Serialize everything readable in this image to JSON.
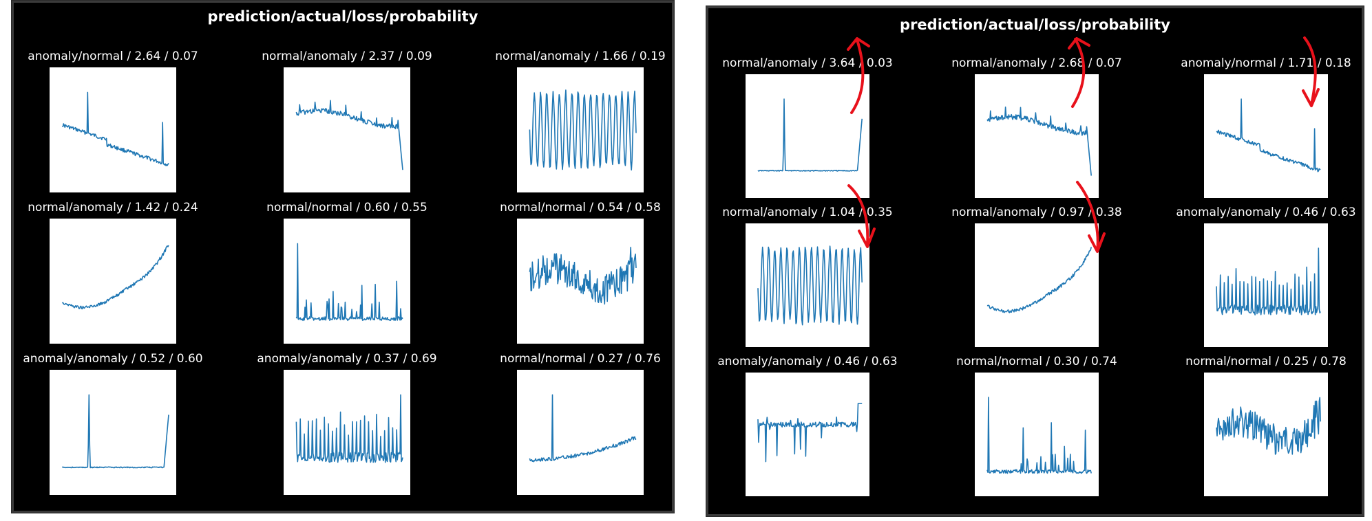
{
  "chart_data": [
    {
      "type": "line",
      "title": "prediction/actual/loss/probability",
      "subplots": [
        {
          "label": "anomaly/normal / 2.64 / 0.07",
          "pattern": "drift_spikes"
        },
        {
          "label": "normal/anomaly / 2.37 / 0.09",
          "pattern": "plateau_drop"
        },
        {
          "label": "normal/anomaly / 1.66 / 0.19",
          "pattern": "periodic"
        },
        {
          "label": "normal/anomaly / 1.42 / 0.24",
          "pattern": "rising"
        },
        {
          "label": "normal/normal / 0.60 / 0.55",
          "pattern": "sparse_spikes"
        },
        {
          "label": "normal/normal / 0.54 / 0.58",
          "pattern": "noisy_wave"
        },
        {
          "label": "anomaly/anomaly / 0.52 / 0.60",
          "pattern": "single_spike"
        },
        {
          "label": "anomaly/anomaly / 0.37 / 0.69",
          "pattern": "dense_spikes"
        },
        {
          "label": "normal/normal / 0.27 / 0.76",
          "pattern": "spike_rising"
        }
      ]
    },
    {
      "type": "line",
      "title": "prediction/actual/loss/probability",
      "subplots": [
        {
          "label": "normal/anomaly / 3.64 / 0.03",
          "pattern": "single_spike"
        },
        {
          "label": "normal/anomaly / 2.68 / 0.07",
          "pattern": "plateau_drop"
        },
        {
          "label": "anomaly/normal / 1.71 / 0.18",
          "pattern": "drift_spikes"
        },
        {
          "label": "normal/anomaly / 1.04 / 0.35",
          "pattern": "periodic"
        },
        {
          "label": "normal/anomaly / 0.97 / 0.38",
          "pattern": "rising"
        },
        {
          "label": "anomaly/anomaly / 0.46 / 0.63",
          "pattern": "dense_spikes"
        },
        {
          "label": "anomaly/anomaly / 0.46 / 0.63",
          "pattern": "flat_noise"
        },
        {
          "label": "normal/normal / 0.30 / 0.74",
          "pattern": "sparse_spikes"
        },
        {
          "label": "normal/normal / 0.25 / 0.78",
          "pattern": "noisy_wave"
        }
      ]
    }
  ],
  "colors": {
    "line": "#1f77b4",
    "background": "#000000",
    "annotation": "#e8111b"
  },
  "annotations": [
    "red-arrow",
    "red-arrow",
    "red-arrow",
    "red-arrow",
    "red-arrow"
  ]
}
